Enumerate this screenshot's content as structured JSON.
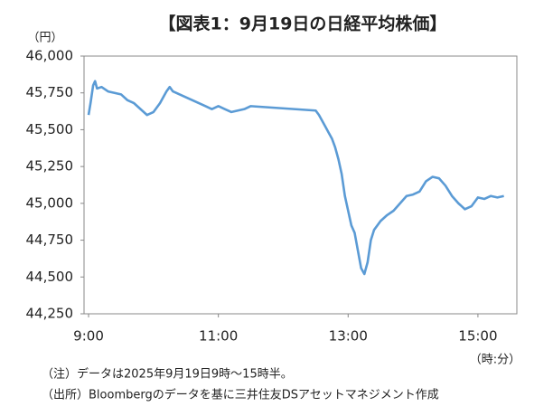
{
  "chart_data": {
    "type": "line",
    "title": "【図表1：9月19日の日経平均株価】",
    "y_unit": "（円）",
    "x_unit": "（時:分）",
    "notes": [
      "（注）データは2025年9月19日9時～15時半。",
      "（出所）Bloombergのデータを基に三井住友DSアセットマネジメント作成"
    ],
    "x": [
      9.0,
      9.03,
      9.07,
      9.1,
      9.13,
      9.2,
      9.3,
      9.4,
      9.5,
      9.6,
      9.7,
      9.8,
      9.9,
      10.0,
      10.1,
      10.2,
      10.25,
      10.3,
      10.4,
      10.5,
      10.6,
      10.7,
      10.8,
      10.9,
      11.0,
      11.1,
      11.2,
      11.3,
      11.4,
      11.5,
      12.5,
      12.55,
      12.6,
      12.65,
      12.7,
      12.75,
      12.8,
      12.85,
      12.9,
      12.95,
      13.0,
      13.05,
      13.1,
      13.15,
      13.2,
      13.25,
      13.3,
      13.35,
      13.4,
      13.5,
      13.6,
      13.7,
      13.8,
      13.9,
      14.0,
      14.1,
      14.2,
      14.3,
      14.4,
      14.5,
      14.6,
      14.7,
      14.8,
      14.9,
      15.0,
      15.1,
      15.2,
      15.3,
      15.4
    ],
    "series": [
      {
        "color": "#5b9bd5",
        "values": [
          45600,
          45680,
          45800,
          45830,
          45780,
          45790,
          45760,
          45750,
          45740,
          45700,
          45680,
          45640,
          45600,
          45620,
          45680,
          45760,
          45790,
          45760,
          45740,
          45720,
          45700,
          45680,
          45660,
          45640,
          45660,
          45640,
          45620,
          45630,
          45640,
          45660,
          45630,
          45600,
          45560,
          45520,
          45480,
          45440,
          45380,
          45300,
          45200,
          45050,
          44950,
          44850,
          44800,
          44680,
          44560,
          44520,
          44600,
          44750,
          44820,
          44880,
          44920,
          44950,
          45000,
          45050,
          45060,
          45080,
          45150,
          45180,
          45170,
          45120,
          45050,
          45000,
          44960,
          44980,
          45040,
          45030,
          45050,
          45040,
          45050
        ]
      }
    ],
    "xlim": [
      8.93,
      15.6
    ],
    "xticks": [
      {
        "value": 9,
        "label": "9:00"
      },
      {
        "value": 11,
        "label": "11:00"
      },
      {
        "value": 13,
        "label": "13:00"
      },
      {
        "value": 15,
        "label": "15:00"
      }
    ],
    "ylim": [
      44250,
      46000
    ],
    "yticks": [
      {
        "value": 44250,
        "label": "44,250"
      },
      {
        "value": 44500,
        "label": "44,500"
      },
      {
        "value": 44750,
        "label": "44,750"
      },
      {
        "value": 45000,
        "label": "45,000"
      },
      {
        "value": 45250,
        "label": "45,250"
      },
      {
        "value": 45500,
        "label": "45,500"
      },
      {
        "value": 45750,
        "label": "45,750"
      },
      {
        "value": 46000,
        "label": "46,000"
      }
    ],
    "grid": false
  }
}
